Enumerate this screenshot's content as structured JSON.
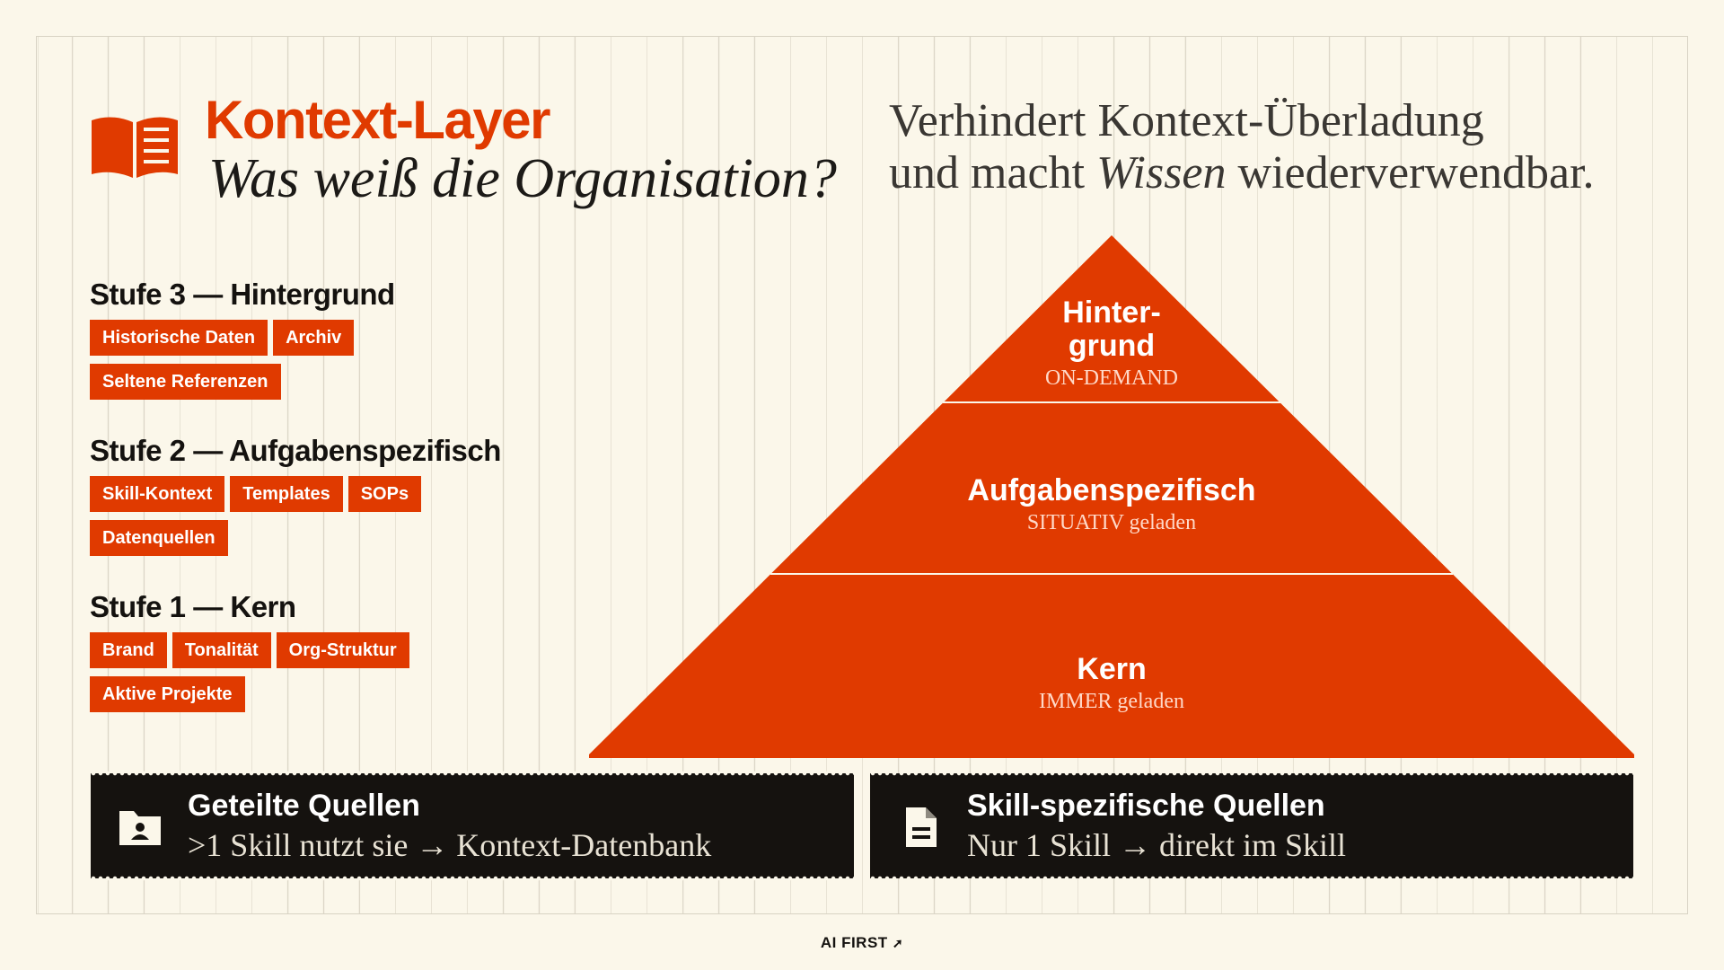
{
  "header": {
    "title": "Kontext-Layer",
    "subtitle": "Was weiß die Organisation?",
    "icon": "book-icon"
  },
  "tagline": {
    "line1": "Verhindert Kontext-Überladung",
    "line2_pre": "und macht ",
    "line2_em": "Wissen",
    "line2_post": " wiederverwendbar."
  },
  "stufen": [
    {
      "heading": "Stufe 3 — Hintergrund",
      "tags": [
        "Historische Daten",
        "Archiv",
        "Seltene Referenzen"
      ]
    },
    {
      "heading": "Stufe 2 — Aufgabenspezifisch",
      "tags": [
        "Skill-Kontext",
        "Templates",
        "SOPs",
        "Datenquellen"
      ]
    },
    {
      "heading": "Stufe 1 — Kern",
      "tags": [
        "Brand",
        "Tonalität",
        "Org-Struktur",
        "Aktive Projekte"
      ]
    }
  ],
  "pyramid": {
    "top": {
      "line1": "Hinter-",
      "line2": "grund",
      "sub": "ON-DEMAND"
    },
    "middle": {
      "main": "Aufgabenspezifisch",
      "sub": "SITUATIV geladen"
    },
    "bottom": {
      "main": "Kern",
      "sub": "IMMER geladen"
    }
  },
  "boxes": {
    "left": {
      "title": "Geteilte Quellen",
      "sub": ">1 Skill nutzt sie → Kontext-Datenbank",
      "icon": "folder-user-icon"
    },
    "right": {
      "title": "Skill-spezifische Quellen",
      "sub": "Nur 1 Skill → direkt im Skill",
      "icon": "document-icon"
    }
  },
  "footer": {
    "brand": "AI FIRST"
  },
  "colors": {
    "accent": "#e03a00",
    "background": "#fbf7ea",
    "dark": "#15120f"
  }
}
